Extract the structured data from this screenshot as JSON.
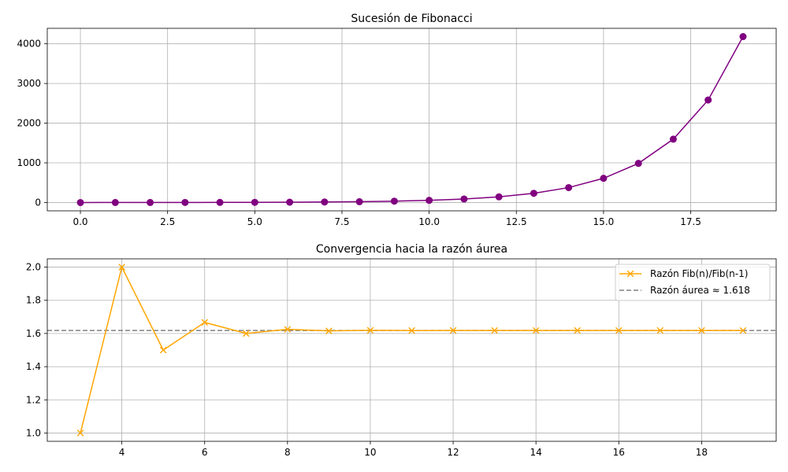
{
  "chart_data": [
    {
      "type": "line",
      "title": "Sucesión de Fibonacci",
      "xlabel": "",
      "ylabel": "",
      "xlim": [
        -0.95,
        19.95
      ],
      "ylim": [
        -209,
        4390
      ],
      "xticks": [
        0,
        2.5,
        5,
        7.5,
        10,
        12.5,
        15,
        17.5
      ],
      "xtick_labels": [
        "0.0",
        "2.5",
        "5.0",
        "7.5",
        "10.0",
        "12.5",
        "15.0",
        "17.5"
      ],
      "yticks": [
        0,
        1000,
        2000,
        3000,
        4000
      ],
      "ytick_labels": [
        "0",
        "1000",
        "2000",
        "3000",
        "4000"
      ],
      "grid": true,
      "series": [
        {
          "color": "#800080",
          "marker": "circle",
          "x": [
            0,
            1,
            2,
            3,
            4,
            5,
            6,
            7,
            8,
            9,
            10,
            11,
            12,
            13,
            14,
            15,
            16,
            17,
            18,
            19
          ],
          "y": [
            0,
            1,
            1,
            2,
            3,
            5,
            8,
            13,
            21,
            34,
            55,
            89,
            144,
            233,
            377,
            610,
            987,
            1597,
            2584,
            4181
          ]
        }
      ]
    },
    {
      "type": "line",
      "title": "Convergencia hacia la razón áurea",
      "xlabel": "",
      "ylabel": "",
      "xlim": [
        2.2,
        19.8
      ],
      "ylim": [
        0.95,
        2.05
      ],
      "xticks": [
        4,
        6,
        8,
        10,
        12,
        14,
        16,
        18
      ],
      "xtick_labels": [
        "4",
        "6",
        "8",
        "10",
        "12",
        "14",
        "16",
        "18"
      ],
      "yticks": [
        1.0,
        1.2,
        1.4,
        1.6,
        1.8,
        2.0
      ],
      "ytick_labels": [
        "1.0",
        "1.2",
        "1.4",
        "1.6",
        "1.8",
        "2.0"
      ],
      "grid": true,
      "legend_position": "top-right",
      "series": [
        {
          "name": "Razón Fib(n)/Fib(n-1)",
          "color": "#ffa500",
          "marker": "x",
          "x": [
            3,
            4,
            5,
            6,
            7,
            8,
            9,
            10,
            11,
            12,
            13,
            14,
            15,
            16,
            17,
            18,
            19
          ],
          "y": [
            1.0,
            2.0,
            1.5,
            1.6667,
            1.6,
            1.625,
            1.6154,
            1.619,
            1.6176,
            1.6182,
            1.618,
            1.618,
            1.618,
            1.618,
            1.618,
            1.618,
            1.618
          ]
        }
      ],
      "reference_line": {
        "name": "Razón áurea ≈ 1.618",
        "color": "#808080",
        "style": "dashed",
        "y": 1.618
      }
    }
  ]
}
